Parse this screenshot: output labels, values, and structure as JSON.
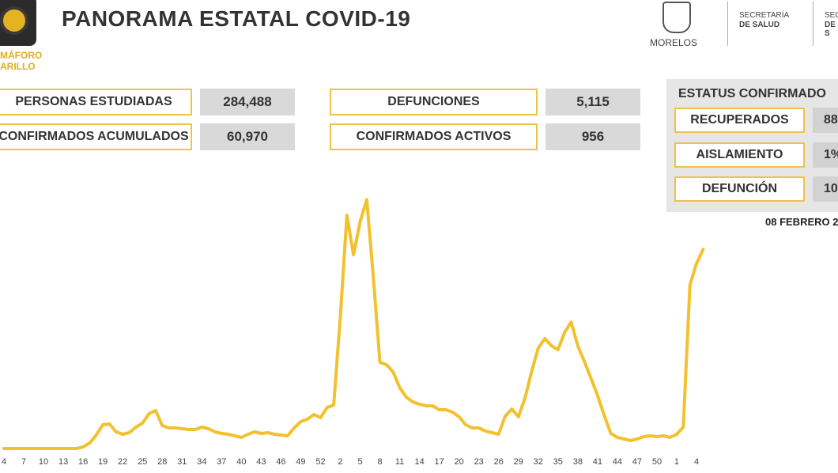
{
  "header": {
    "title": "PANORAMA ESTATAL COVID-19",
    "badge": [
      "MÁFORO",
      "ARILLO"
    ],
    "state": "MORELOS",
    "ministry": [
      "SECRETARÍA",
      "DE SALUD"
    ],
    "ministry2": [
      "SECRETA",
      "DE S"
    ]
  },
  "stats": [
    {
      "label": "PERSONAS ESTUDIADAS",
      "value": "284,488"
    },
    {
      "label": "CONFIRMADOS ACUMULADOS",
      "value": "60,970"
    },
    {
      "label": "DEFUNCIONES",
      "value": "5,115"
    },
    {
      "label": "CONFIRMADOS ACTIVOS",
      "value": "956"
    }
  ],
  "status": {
    "title": "ESTATUS CONFIRMADO",
    "rows": [
      {
        "label": "RECUPERADOS",
        "value": "88"
      },
      {
        "label": "AISLAMIENTO",
        "value": "1%"
      },
      {
        "label": "DEFUNCIÓN",
        "value": "10"
      }
    ],
    "date": "08 FEBRERO 2"
  },
  "chart_data": {
    "type": "line",
    "color": "#f2c12e",
    "ylim": [
      0,
      3000
    ],
    "categories": [
      "4",
      null,
      null,
      "7",
      null,
      null,
      "10",
      null,
      null,
      "13",
      null,
      null,
      "16",
      null,
      null,
      "19",
      null,
      null,
      "22",
      null,
      null,
      "25",
      null,
      null,
      "28",
      null,
      null,
      "31",
      null,
      null,
      "34",
      null,
      null,
      "37",
      null,
      null,
      "40",
      null,
      null,
      "43",
      null,
      null,
      "46",
      null,
      null,
      "49",
      null,
      null,
      "52",
      null,
      null,
      "2",
      null,
      null,
      "5",
      null,
      null,
      "8",
      null,
      null,
      "11",
      null,
      null,
      "14",
      null,
      null,
      "17",
      null,
      null,
      "20",
      null,
      null,
      "23",
      null,
      null,
      "26",
      null,
      null,
      "29",
      null,
      null,
      "32",
      null,
      null,
      "35",
      null,
      null,
      "38",
      null,
      null,
      "41",
      null,
      null,
      "44",
      null,
      null,
      "47",
      null,
      null,
      "50",
      null,
      null,
      "1",
      null,
      null,
      "4",
      null
    ],
    "values": [
      9,
      9,
      9,
      9,
      9,
      9,
      9,
      9,
      9,
      9,
      9,
      9,
      27,
      72,
      162,
      279,
      288,
      198,
      171,
      189,
      252,
      297,
      405,
      441,
      270,
      243,
      243,
      234,
      225,
      225,
      252,
      234,
      198,
      180,
      171,
      153,
      135,
      171,
      198,
      180,
      189,
      171,
      162,
      153,
      243,
      315,
      342,
      396,
      360,
      477,
      504,
      1512,
      2664,
      2214,
      2592,
      2844,
      1962,
      990,
      963,
      882,
      702,
      594,
      540,
      513,
      495,
      495,
      450,
      450,
      423,
      369,
      279,
      243,
      243,
      207,
      189,
      171,
      378,
      459,
      369,
      585,
      882,
      1152,
      1260,
      1179,
      1134,
      1332,
      1449,
      1179,
      999,
      810,
      612,
      387,
      180,
      135,
      117,
      99,
      117,
      144,
      153,
      144,
      153,
      135,
      171,
      252,
      1872,
      2115,
      2277
    ]
  }
}
